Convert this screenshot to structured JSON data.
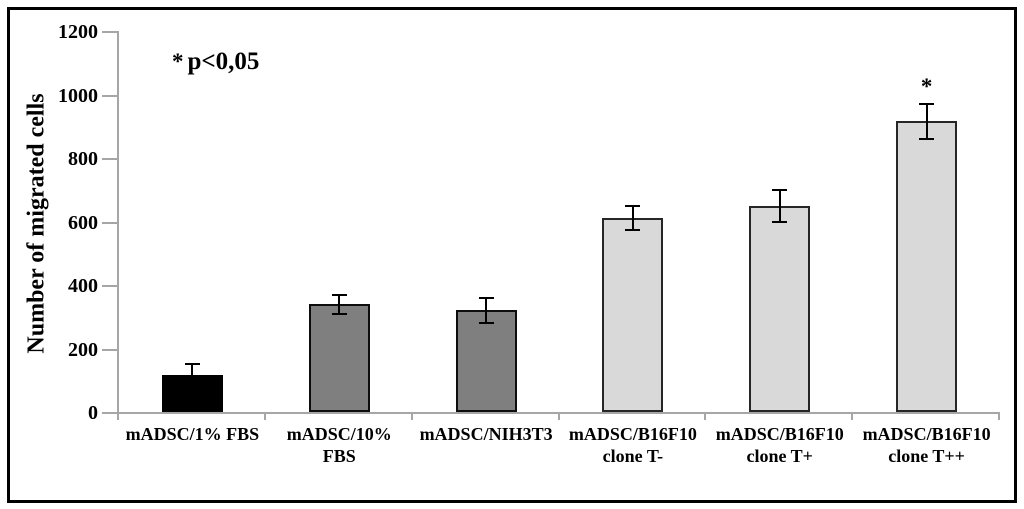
{
  "figure": {
    "background": "#ffffff",
    "frame_color": "#000000"
  },
  "annotation": {
    "star": "*",
    "text": "p<0,05"
  },
  "chart_data": {
    "type": "bar",
    "title": "",
    "xlabel": "",
    "ylabel": "Number of migrated cells",
    "ylim": [
      0,
      1200
    ],
    "yticks": [
      0,
      200,
      400,
      600,
      800,
      1000,
      1200
    ],
    "grid": false,
    "legend_position": "none",
    "categories": [
      "mADSC/1% FBS",
      "mADSC/10% FBS",
      "mADSC/NIH3T3",
      "mADSC/B16F10 clone T-",
      "mADSC/B16F10 clone T+",
      "mADSC/B16F10 clone T++"
    ],
    "category_lines": [
      [
        "mADSC/1% FBS"
      ],
      [
        "mADSC/10%",
        "FBS"
      ],
      [
        "mADSC/NIH3T3"
      ],
      [
        "mADSC/B16F10",
        "clone T-"
      ],
      [
        "mADSC/B16F10",
        "clone T+"
      ],
      [
        "mADSC/B16F10",
        "clone T++"
      ]
    ],
    "values": [
      115,
      340,
      320,
      610,
      650,
      915
    ],
    "errors": [
      35,
      30,
      40,
      38,
      50,
      55
    ],
    "significant": [
      false,
      false,
      false,
      false,
      false,
      true
    ],
    "sig_marker": "*",
    "bar_fill_colors": [
      "#000000",
      "#7f7f7f",
      "#7f7f7f",
      "#d9d9d9",
      "#d9d9d9",
      "#d9d9d9"
    ],
    "bar_border_colors": [
      "#000000",
      "#0d0d0d",
      "#0d0d0d",
      "#262626",
      "#262626",
      "#262626"
    ],
    "axis_color": "#a6a6a6",
    "error_bar_color": "#000000",
    "text_color": "#000000"
  }
}
